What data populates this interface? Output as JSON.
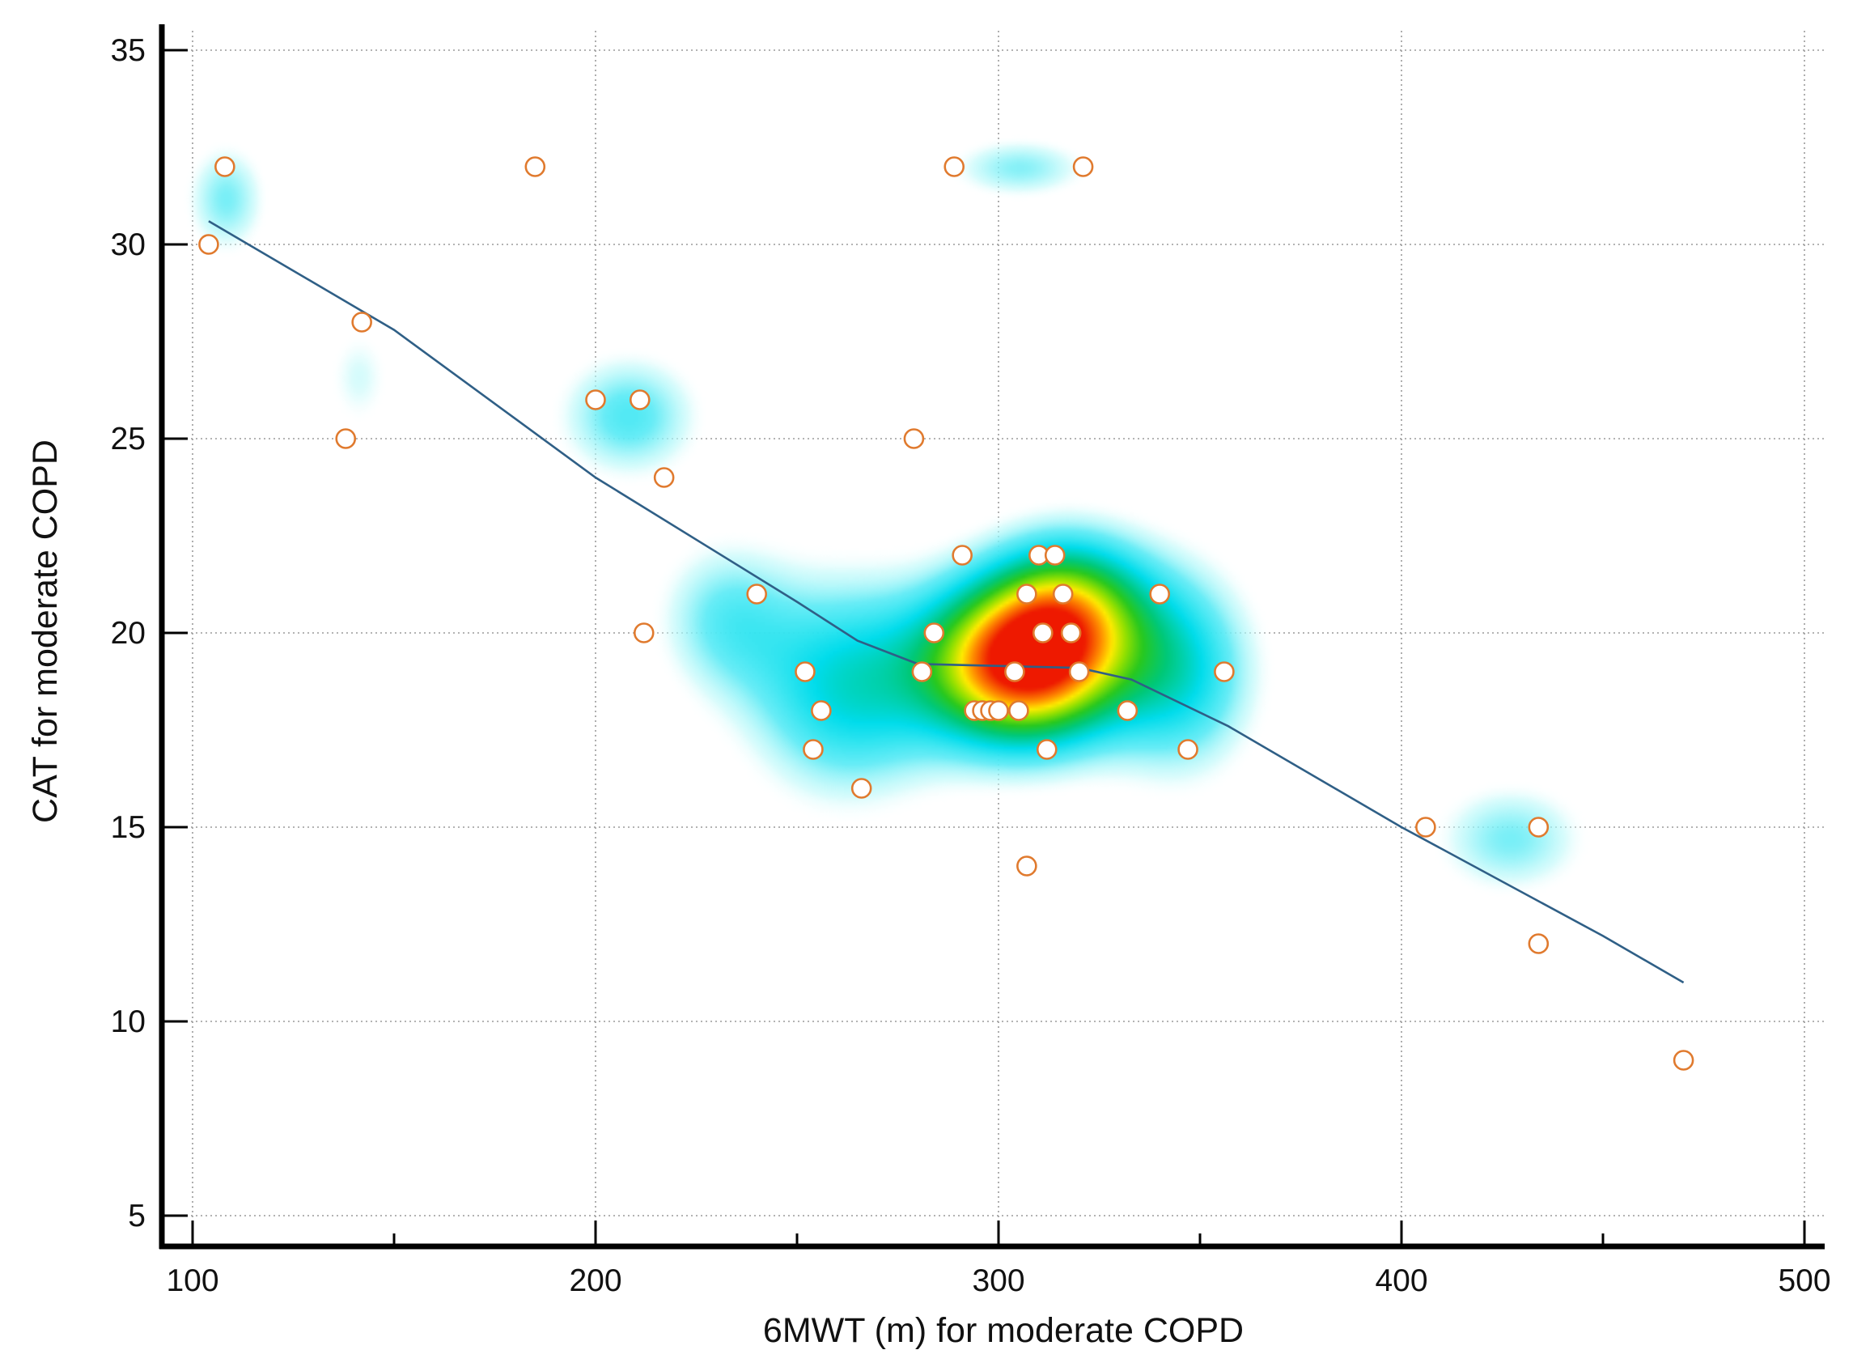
{
  "chart_data": {
    "type": "scatter",
    "title": "",
    "xlabel": "6MWT (m) for moderate COPD",
    "ylabel": "CAT for moderate COPD",
    "xlim": [
      100,
      500
    ],
    "ylim": [
      5,
      35
    ],
    "x_ticks": [
      100,
      200,
      300,
      400,
      500
    ],
    "y_ticks": [
      5,
      10,
      15,
      20,
      25,
      30,
      35
    ],
    "x_minor_ticks": [
      150,
      250,
      350,
      450
    ],
    "grid": true,
    "legend": "none",
    "overlay": "density heatmap (cyan → green → yellow → red)",
    "colors": {
      "point_edge": "#e07a2e",
      "point_fill_outside": "#ffffff",
      "point_fill_inside": "#ffffff",
      "fit_line": "#2f5f86",
      "density_low": "#7ff0f0",
      "density_mid": "#22cc22",
      "density_high": "#ffee00",
      "density_peak": "#ee2200"
    },
    "points": [
      [
        104,
        30
      ],
      [
        108,
        32
      ],
      [
        138,
        25
      ],
      [
        142,
        28
      ],
      [
        185,
        32
      ],
      [
        200,
        26
      ],
      [
        211,
        26
      ],
      [
        212,
        20
      ],
      [
        217,
        24
      ],
      [
        240,
        21
      ],
      [
        252,
        19
      ],
      [
        254,
        17
      ],
      [
        256,
        18
      ],
      [
        266,
        16
      ],
      [
        279,
        25
      ],
      [
        281,
        19
      ],
      [
        284,
        20
      ],
      [
        289,
        32
      ],
      [
        291,
        22
      ],
      [
        294,
        18
      ],
      [
        296,
        18
      ],
      [
        298,
        18
      ],
      [
        300,
        18
      ],
      [
        304,
        19
      ],
      [
        305,
        18
      ],
      [
        307,
        21
      ],
      [
        307,
        14
      ],
      [
        310,
        22
      ],
      [
        311,
        20
      ],
      [
        312,
        17
      ],
      [
        314,
        22
      ],
      [
        316,
        21
      ],
      [
        318,
        20
      ],
      [
        320,
        19
      ],
      [
        321,
        32
      ],
      [
        332,
        18
      ],
      [
        340,
        21
      ],
      [
        347,
        17
      ],
      [
        356,
        19
      ],
      [
        406,
        15
      ],
      [
        434,
        15
      ],
      [
        434,
        12
      ],
      [
        470,
        9
      ]
    ],
    "fit_line": [
      [
        104,
        30.6
      ],
      [
        150,
        27.8
      ],
      [
        200,
        24.0
      ],
      [
        250,
        20.8
      ],
      [
        265,
        19.8
      ],
      [
        280,
        19.2
      ],
      [
        320,
        19.1
      ],
      [
        333,
        18.8
      ],
      [
        357,
        17.6
      ],
      [
        400,
        15.0
      ],
      [
        450,
        12.2
      ],
      [
        470,
        11.0
      ]
    ],
    "density_blobs": [
      {
        "x": 306,
        "y": 19.2,
        "sx": 17,
        "sy": 1.45,
        "w": 1.0
      },
      {
        "x": 262,
        "y": 18.6,
        "sx": 17,
        "sy": 1.9,
        "w": 0.35
      },
      {
        "x": 318,
        "y": 20.8,
        "sx": 14,
        "sy": 1.3,
        "w": 0.45
      },
      {
        "x": 345,
        "y": 19.0,
        "sx": 13,
        "sy": 1.8,
        "w": 0.32
      },
      {
        "x": 232,
        "y": 20.4,
        "sx": 12,
        "sy": 1.4,
        "w": 0.2
      },
      {
        "x": 208,
        "y": 25.6,
        "sx": 12,
        "sy": 1.1,
        "w": 0.24
      },
      {
        "x": 427,
        "y": 14.7,
        "sx": 13,
        "sy": 1.0,
        "w": 0.2
      },
      {
        "x": 305,
        "y": 32.0,
        "sx": 12,
        "sy": 0.55,
        "w": 0.19
      },
      {
        "x": 108,
        "y": 31.2,
        "sx": 7,
        "sy": 1.0,
        "w": 0.2
      },
      {
        "x": 141,
        "y": 26.6,
        "sx": 6,
        "sy": 1.0,
        "w": 0.12
      }
    ]
  }
}
